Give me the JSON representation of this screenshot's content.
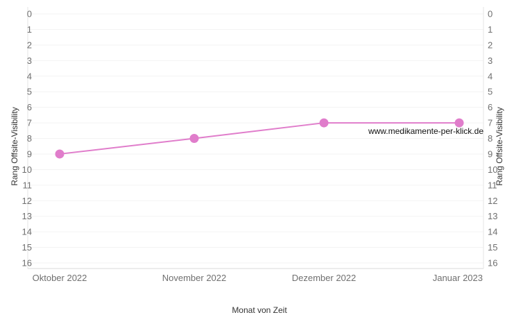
{
  "chart_data": {
    "type": "line",
    "xlabel": "Monat von Zeit",
    "ylabel": "Rang Offsite-Visibility",
    "ylabel_right": "Rang Offsite-Visibility",
    "categories": [
      "Oktober 2022",
      "November 2022",
      "Dezember 2022",
      "Januar 2023"
    ],
    "series": [
      {
        "name": "www.medikamente-per-klick.de",
        "values": [
          9,
          8,
          7,
          7
        ],
        "color": "#e07dcb"
      }
    ],
    "ylim": [
      0,
      16
    ],
    "y_reversed": true,
    "yticks": [
      0,
      1,
      2,
      3,
      4,
      5,
      6,
      7,
      8,
      9,
      10,
      11,
      12,
      13,
      14,
      15,
      16
    ],
    "grid": true,
    "end_label": "www.medikamente-per-klick.de"
  }
}
